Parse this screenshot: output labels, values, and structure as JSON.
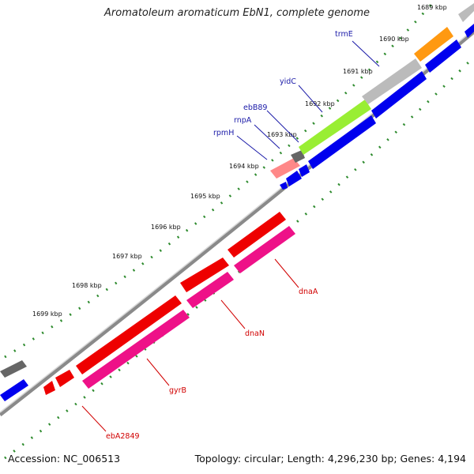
{
  "title": "Aromatoleum aromaticum EbN1, complete genome",
  "footer": {
    "accession": "Accession: NC_006513",
    "stats": "Topology: circular; Length: 4,296,230 bp; Genes: 4,194"
  },
  "ticks": [
    "1689 kbp",
    "1690 kbp",
    "1691 kbp",
    "1692 kbp",
    "1693 kbp",
    "1694 kbp",
    "1695 kbp",
    "1696 kbp",
    "1697 kbp",
    "1698 kbp",
    "1699 kbp"
  ],
  "genes": [
    {
      "name": "trmE",
      "color": "#1a1aa8"
    },
    {
      "name": "yidC",
      "color": "#1a1aa8"
    },
    {
      "name": "ebB89",
      "color": "#1a1aa8"
    },
    {
      "name": "rnpA",
      "color": "#1a1aa8"
    },
    {
      "name": "rpmH",
      "color": "#1a1aa8"
    },
    {
      "name": "dnaA",
      "color": "#d10000"
    },
    {
      "name": "dnaN",
      "color": "#d10000"
    },
    {
      "name": "gyrB",
      "color": "#d10000"
    },
    {
      "name": "ebA2849",
      "color": "#d10000"
    }
  ],
  "colors": {
    "forward_cds": "#0000ee",
    "reverse_cds_red": "#ee0000",
    "reverse_cds_pink": "#ee1188",
    "green_feature": "#99ee33",
    "orange_feature": "#ff9911",
    "gray_feature": "#bbbbbb",
    "dark_gray_feature": "#666666",
    "salmon_feature": "#ff8888",
    "tick_green": "#2e8b2e",
    "backbone": "#888888"
  }
}
